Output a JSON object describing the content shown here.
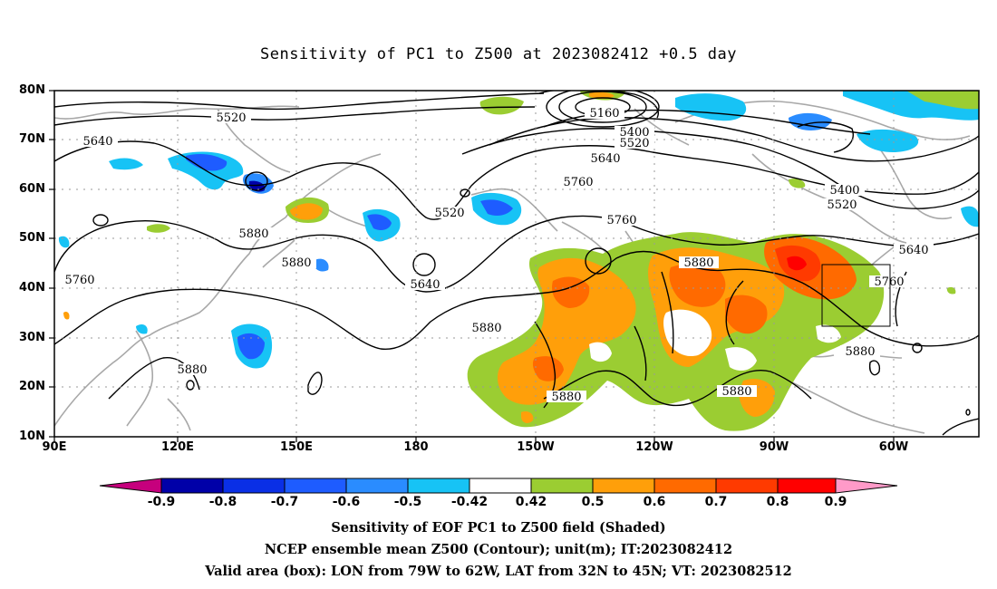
{
  "title": "Sensitivity of PC1 to Z500 at 2023082412 +0.5 day",
  "lat_labels": [
    "80N",
    "70N",
    "60N",
    "50N",
    "40N",
    "30N",
    "20N",
    "10N"
  ],
  "lon_labels": [
    "90E",
    "120E",
    "150E",
    "180",
    "150W",
    "120W",
    "90W",
    "60W"
  ],
  "contour_labels": [
    "5160",
    "5400",
    "5520",
    "5640",
    "5520",
    "5640",
    "5760",
    "5880",
    "5760",
    "5760",
    "5520",
    "5640",
    "5760",
    "5880",
    "5400",
    "5520",
    "5640",
    "5760",
    "5880",
    "5880",
    "5880",
    "5880",
    "5880"
  ],
  "colorbar": {
    "labels": [
      "-0.9",
      "-0.8",
      "-0.7",
      "-0.6",
      "-0.5",
      "-0.42",
      "0.42",
      "0.5",
      "0.6",
      "0.7",
      "0.8",
      "0.9"
    ],
    "colors": [
      "#c6007d",
      "#0000a8",
      "#0a2fe6",
      "#1e5cff",
      "#2a8cff",
      "#17c3f5",
      "#ffffff",
      "#9bcd32",
      "#ff9f0a",
      "#ff6a00",
      "#ff3a00",
      "#ff0000",
      "#ff9ac8"
    ]
  },
  "captions": [
    "Sensitivity of EOF PC1 to Z500 field (Shaded)",
    "NCEP ensemble mean Z500 (Contour); unit(m); IT:2023082412",
    "Valid area (box): LON from 79W to 62W, LAT from 32N to 45N; VT: 2023082512"
  ]
}
